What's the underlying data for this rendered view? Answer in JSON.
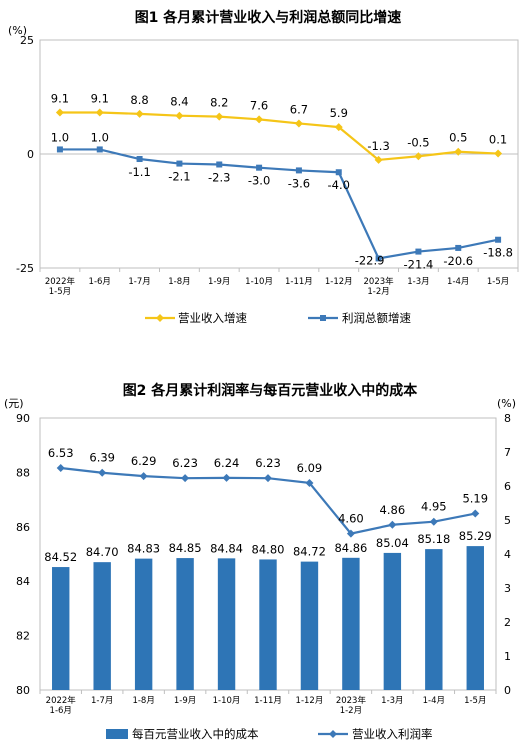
{
  "chart_data": [
    {
      "type": "line",
      "title": "图1  各月累计营业收入与利润总额同比增速",
      "unit_label": "(%)",
      "categories": [
        "2022年\n1-5月",
        "1-6月",
        "1-7月",
        "1-8月",
        "1-9月",
        "1-10月",
        "1-11月",
        "1-12月",
        "2023年\n1-2月",
        "1-3月",
        "1-4月",
        "1-5月"
      ],
      "ylim": [
        -25,
        25
      ],
      "yticks": [
        25,
        0,
        -25
      ],
      "series": [
        {
          "name": "营业收入增速",
          "color": "#F5C518",
          "values": [
            9.1,
            9.1,
            8.8,
            8.4,
            8.2,
            7.6,
            6.7,
            5.9,
            -1.3,
            -0.5,
            0.5,
            0.1
          ],
          "labels": [
            "9.1",
            "9.1",
            "8.8",
            "8.4",
            "8.2",
            "7.6",
            "6.7",
            "5.9",
            "-1.3",
            "-0.5",
            "0.5",
            "0.1"
          ]
        },
        {
          "name": "利润总额增速",
          "color": "#3D79B8",
          "values": [
            1.0,
            1.0,
            -1.1,
            -2.1,
            -2.3,
            -3.0,
            -3.6,
            -4.0,
            -22.9,
            -21.4,
            -20.6,
            -18.8
          ],
          "labels": [
            "1.0",
            "1.0",
            "-1.1",
            "-2.1",
            "-2.3",
            "-3.0",
            "-3.6",
            "-4.0",
            "-22.9",
            "-21.4",
            "-20.6",
            "-18.8"
          ]
        }
      ]
    },
    {
      "type": "bar+line",
      "title": "图2  各月累计利润率与每百元营业收入中的成本",
      "left_unit": "(元)",
      "right_unit": "(%)",
      "categories": [
        "2022年\n1-6月",
        "1-7月",
        "1-8月",
        "1-9月",
        "1-10月",
        "1-11月",
        "1-12月",
        "2023年\n1-2月",
        "1-3月",
        "1-4月",
        "1-5月"
      ],
      "left_ylim": [
        80,
        90
      ],
      "left_yticks": [
        90,
        88,
        86,
        84,
        82,
        80
      ],
      "right_ylim": [
        0,
        8
      ],
      "right_yticks": [
        8,
        7,
        6,
        5,
        4,
        3,
        2,
        1,
        0
      ],
      "series": [
        {
          "name": "每百元营业收入中的成本",
          "kind": "bar",
          "axis": "left",
          "color": "#2E75B6",
          "values": [
            84.52,
            84.7,
            84.83,
            84.85,
            84.84,
            84.8,
            84.72,
            84.86,
            85.04,
            85.18,
            85.29
          ],
          "labels": [
            "84.52",
            "84.70",
            "84.83",
            "84.85",
            "84.84",
            "84.80",
            "84.72",
            "84.86",
            "85.04",
            "85.18",
            "85.29"
          ]
        },
        {
          "name": "营业收入利润率",
          "kind": "line",
          "axis": "right",
          "color": "#3D79B8",
          "values": [
            6.53,
            6.39,
            6.29,
            6.23,
            6.24,
            6.23,
            6.09,
            4.6,
            4.86,
            4.95,
            5.19
          ],
          "labels": [
            "6.53",
            "6.39",
            "6.29",
            "6.23",
            "6.24",
            "6.23",
            "6.09",
            "4.60",
            "4.86",
            "4.95",
            "5.19"
          ]
        }
      ]
    }
  ]
}
